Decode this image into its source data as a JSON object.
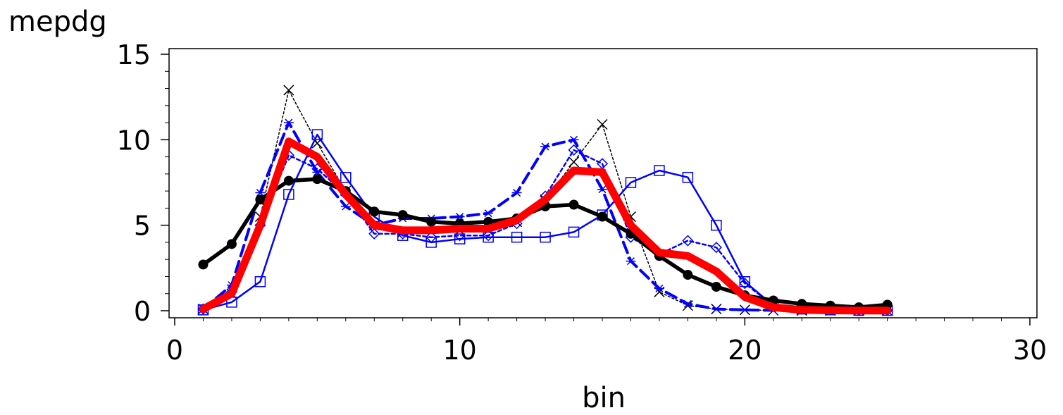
{
  "chart_data": {
    "type": "line",
    "xlabel": "bin",
    "ylabel": "mepdg",
    "xlim": [
      0,
      30
    ],
    "ylim": [
      0,
      15
    ],
    "xticks": [
      0,
      10,
      20,
      30
    ],
    "yticks": [
      0,
      5,
      10,
      15
    ],
    "grid": false,
    "legend": "none",
    "series": [
      {
        "color": "#000000",
        "marker": "x",
        "line_style": "dotted-thin",
        "x": [
          1,
          2,
          3,
          4,
          5,
          6,
          7,
          8,
          9,
          10,
          11,
          12,
          13,
          14,
          15,
          16,
          17,
          18,
          19,
          20,
          21,
          22,
          23,
          24,
          25
        ],
        "values": [
          0.1,
          1.0,
          5.5,
          12.9,
          9.8,
          7.0,
          5.0,
          4.6,
          4.6,
          4.7,
          4.7,
          5.2,
          6.5,
          8.7,
          10.9,
          5.5,
          1.1,
          0.3,
          0.1,
          0.05,
          0.02,
          0.01,
          0.01,
          0.01,
          0.01
        ]
      },
      {
        "color": "#0000ff",
        "marker": "square",
        "line_style": "solid-thin",
        "x": [
          1,
          2,
          3,
          4,
          5,
          6,
          7,
          8,
          9,
          10,
          11,
          12,
          13,
          14,
          15,
          16,
          17,
          18,
          19,
          20,
          21,
          22,
          23,
          24,
          25
        ],
        "values": [
          0.05,
          0.5,
          1.7,
          6.8,
          10.3,
          7.8,
          5.5,
          4.4,
          4.0,
          4.2,
          4.3,
          4.3,
          4.3,
          4.6,
          5.6,
          7.5,
          8.2,
          7.8,
          5.0,
          1.7,
          0.3,
          0.1,
          0.05,
          0.02,
          0.02
        ]
      },
      {
        "color": "#0000ff",
        "marker": "diamond",
        "line_style": "dotted",
        "x": [
          1,
          2,
          3,
          4,
          5,
          6,
          7,
          8,
          9,
          10,
          11,
          12,
          13,
          14,
          15,
          16,
          17,
          18,
          19,
          20,
          21,
          22,
          23,
          24,
          25
        ],
        "values": [
          0.1,
          1.1,
          5.0,
          9.1,
          8.3,
          6.8,
          4.5,
          4.5,
          4.3,
          4.4,
          4.4,
          5.1,
          6.7,
          9.4,
          8.6,
          4.3,
          3.3,
          4.1,
          3.7,
          1.6,
          0.3,
          0.1,
          0.05,
          0.02,
          0.02
        ]
      },
      {
        "color": "#0000ff",
        "marker": "star",
        "line_style": "dashed",
        "x": [
          1,
          2,
          3,
          4,
          5,
          6,
          7,
          8,
          9,
          10,
          11,
          12,
          13,
          14,
          15,
          16,
          17,
          18,
          19,
          20,
          21,
          22,
          23,
          24,
          25
        ],
        "values": [
          0.1,
          1.5,
          6.9,
          11.0,
          8.1,
          6.1,
          5.0,
          5.4,
          5.4,
          5.5,
          5.7,
          6.9,
          9.6,
          10.0,
          7.1,
          2.9,
          1.3,
          0.4,
          0.1,
          0.05,
          0.02,
          0.01,
          0.01,
          0.01,
          0.01
        ]
      },
      {
        "color": "#000000",
        "marker": "dot",
        "line_style": "solid-thick",
        "x": [
          1,
          2,
          3,
          4,
          5,
          6,
          7,
          8,
          9,
          10,
          11,
          12,
          13,
          14,
          15,
          16,
          17,
          18,
          19,
          20,
          21,
          22,
          23,
          24,
          25
        ],
        "values": [
          2.7,
          3.9,
          6.5,
          7.6,
          7.7,
          7.0,
          5.8,
          5.6,
          5.2,
          5.1,
          5.2,
          5.4,
          6.1,
          6.2,
          5.5,
          4.5,
          3.2,
          2.1,
          1.4,
          0.9,
          0.6,
          0.4,
          0.3,
          0.2,
          0.35
        ]
      },
      {
        "color": "#ff0000",
        "marker": "none",
        "line_style": "solid-heavy",
        "x": [
          1,
          2,
          3,
          4,
          5,
          6,
          7,
          8,
          9,
          10,
          11,
          12,
          13,
          14,
          15,
          16,
          17,
          18,
          19,
          20,
          21,
          22,
          23,
          24,
          25
        ],
        "values": [
          0.1,
          1.0,
          5.0,
          9.9,
          9.0,
          6.8,
          5.0,
          4.7,
          4.7,
          4.8,
          4.8,
          5.3,
          6.5,
          8.2,
          8.1,
          5.0,
          3.4,
          3.2,
          2.3,
          0.8,
          0.2,
          0.05,
          0.02,
          0.01,
          0.01
        ]
      }
    ]
  }
}
